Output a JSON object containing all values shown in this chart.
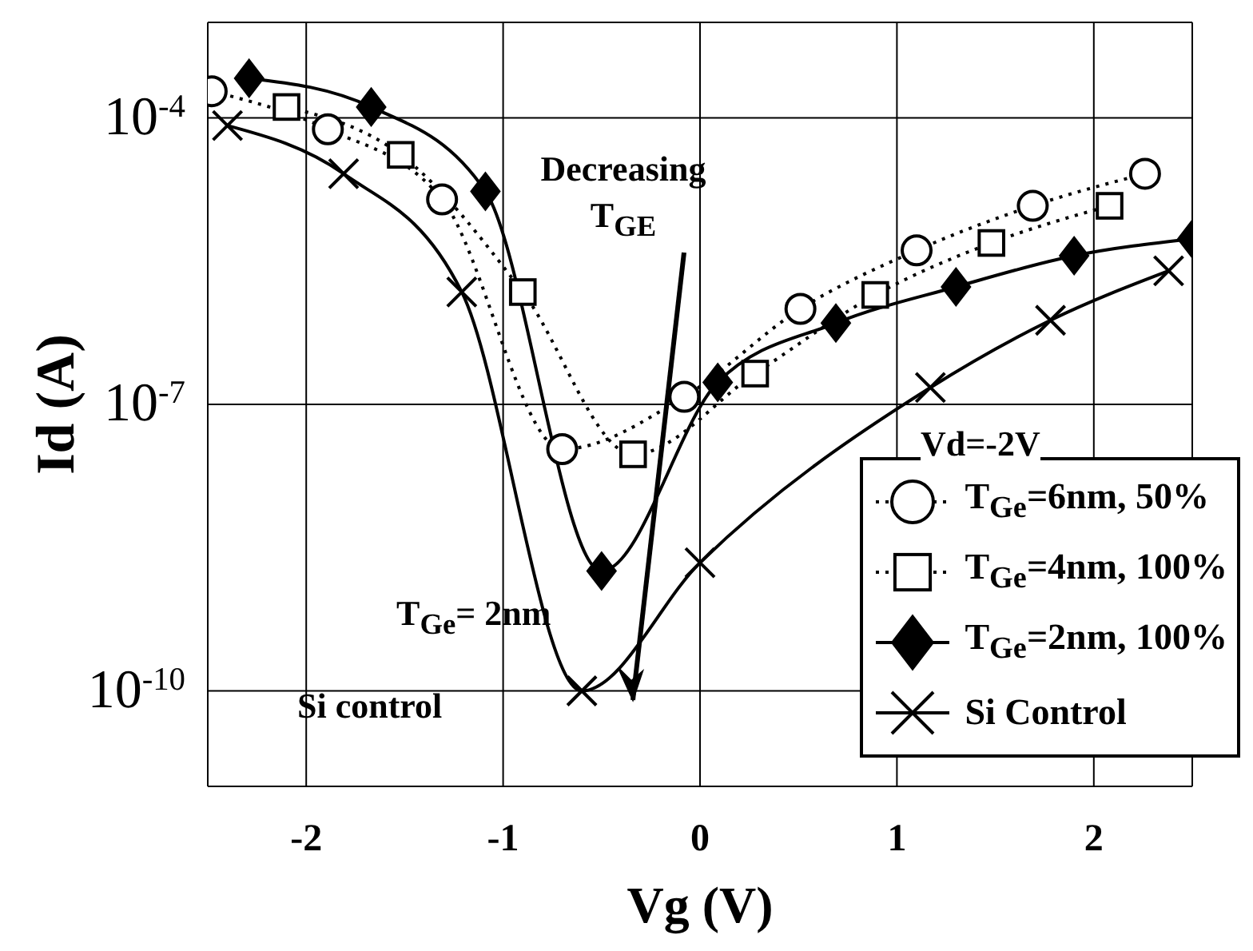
{
  "chart_data": {
    "type": "line",
    "xlabel": "Vg (V)",
    "ylabel": "Id (A)",
    "log": "y",
    "grid": true,
    "legend": "bottom right",
    "xlim": [
      -2.5,
      2.5
    ],
    "xticks": [
      -2,
      -1,
      0,
      1,
      2
    ],
    "ylim": [
      1e-11,
      0.001
    ],
    "yticks": [
      {
        "value": 0.0001,
        "label": "10$^{-4}$"
      },
      {
        "value": 1e-07,
        "label": "10$^{-7}$"
      },
      {
        "value": 1e-10,
        "label": "10$^{-10}$"
      }
    ],
    "series": [
      {
        "name": "T$_{Ge}$=6nm, 50%",
        "color": "#000000",
        "marker": "circle",
        "line_style": "dotted",
        "x": [
          -2.48,
          -1.89,
          -1.31,
          -0.7,
          -0.08,
          0.51,
          1.1,
          1.69,
          2.26
        ],
        "values": [
          0.00019,
          7.6e-05,
          1.4e-05,
          3.4e-08,
          1.2e-07,
          1e-06,
          4.1e-06,
          1.2e-05,
          2.6e-05
        ]
      },
      {
        "name": "T$_{Ge}$=4nm, 100%",
        "color": "#000000",
        "marker": "square",
        "line_style": "dotted",
        "x": [
          -2.1,
          -1.52,
          -0.9,
          -0.34,
          0.28,
          0.89,
          1.48,
          2.08
        ],
        "values": [
          0.00013,
          4.1e-05,
          1.5e-06,
          3e-08,
          2.1e-07,
          1.4e-06,
          4.9e-06,
          1.2e-05
        ]
      },
      {
        "name": "T$_{Ge}$=2nm, 100%",
        "color": "#000000",
        "marker": "diamond",
        "line_style": "solid",
        "x": [
          -2.29,
          -1.67,
          -1.09,
          -0.5,
          0.09,
          0.69,
          1.3,
          1.9,
          2.5
        ],
        "values": [
          0.00026,
          0.00013,
          1.7e-05,
          1.8e-09,
          1.7e-07,
          7.1e-07,
          1.7e-06,
          3.6e-06,
          5.4e-06
        ]
      },
      {
        "name": "Si Control",
        "color": "#000000",
        "marker": "cross",
        "line_style": "solid",
        "x": [
          -2.4,
          -1.81,
          -1.21,
          -0.6,
          0,
          1.17,
          1.78,
          2.38
        ],
        "values": [
          8.3e-05,
          2.6e-05,
          1.5e-06,
          1e-10,
          2.2e-09,
          1.5e-07,
          7.6e-07,
          2.5e-06
        ]
      }
    ],
    "annotations": [
      "Decreasing T$_{GE}$",
      "T$_{Ge}$= 2nm",
      "Si control",
      "Vd=-2V"
    ]
  }
}
